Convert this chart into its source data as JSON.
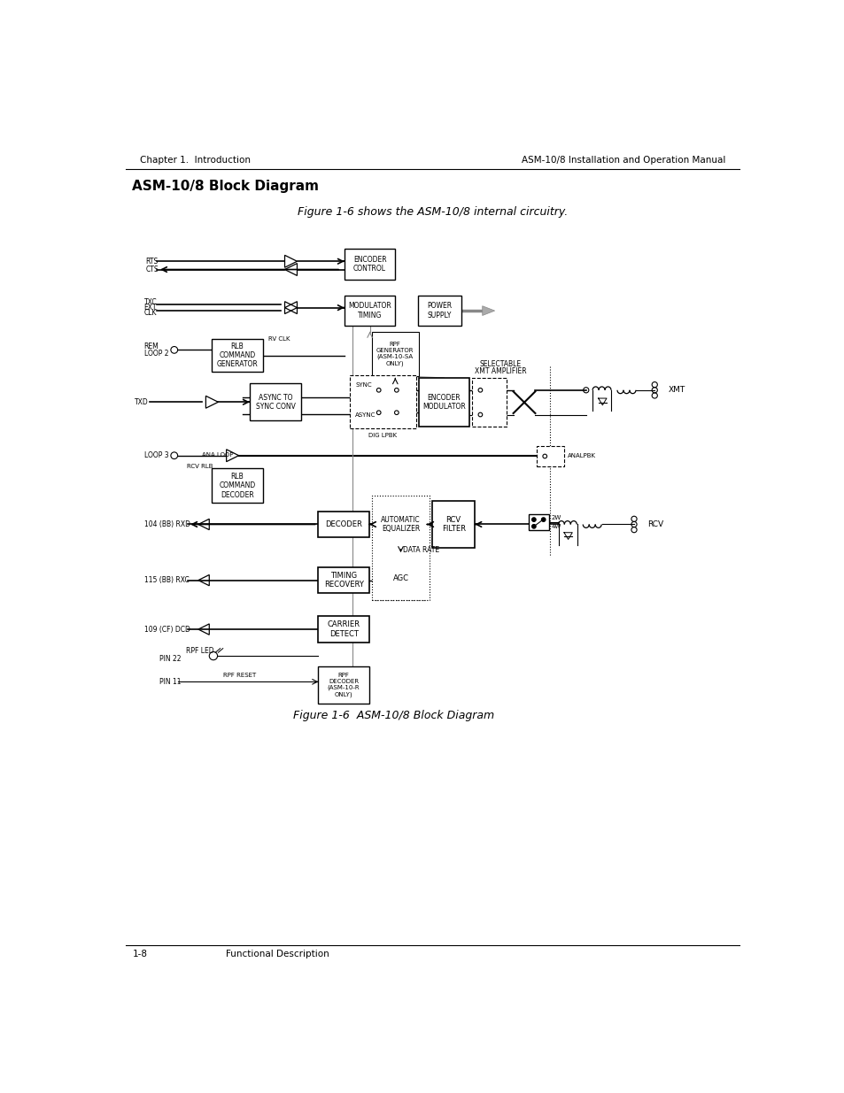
{
  "page_header_left": "Chapter 1.  Introduction",
  "page_header_right": "ASM-10/8 Installation and Operation Manual",
  "section_title": "ASM-10/8 Block Diagram",
  "figure_caption_top": "Figure 1-6 shows the ASM-10/8 internal circuitry.",
  "figure_caption_bottom": "Figure 1-6  ASM-10/8 Block Diagram",
  "page_footer_left": "1-8",
  "page_footer_right": "Functional Description",
  "bg_color": "#ffffff",
  "text_color": "#000000",
  "line_color": "#000000"
}
